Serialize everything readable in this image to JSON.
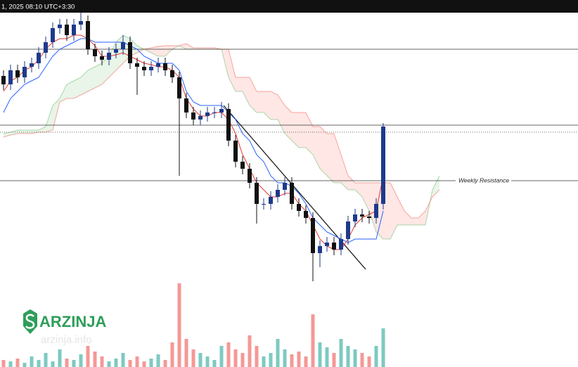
{
  "header": {
    "text": "1, 2025 08:10 UTC+3:30"
  },
  "logo": {
    "name": "ARZINJA",
    "url": "arzinja.info"
  },
  "chart_data": {
    "type": "candlestick",
    "categories": [
      null,
      null,
      null,
      null,
      null,
      null,
      null,
      null,
      null,
      null,
      null,
      null,
      null,
      null,
      null,
      null,
      null,
      null,
      null,
      null,
      null,
      null,
      null,
      null,
      null,
      null,
      null,
      null,
      null,
      null,
      null,
      null,
      null,
      null,
      null,
      null,
      null,
      null,
      null,
      null,
      null,
      null,
      null,
      null,
      null,
      null,
      null,
      null,
      null,
      null,
      null,
      null,
      null,
      null,
      null,
      null,
      null,
      null,
      null,
      null,
      null,
      null,
      null
    ],
    "ylim": [
      0,
      420
    ],
    "up_color": "#1e3a8a",
    "down_color": "#111111",
    "open": [
      312,
      300,
      320,
      310,
      325,
      330,
      345,
      360,
      380,
      385,
      370,
      385,
      390,
      350,
      340,
      335,
      345,
      350,
      360,
      330,
      325,
      320,
      325,
      330,
      320,
      310,
      280,
      260,
      250,
      255,
      260,
      260,
      265,
      220,
      190,
      180,
      160,
      130,
      130,
      140,
      150,
      160,
      130,
      120,
      110,
      60,
      70,
      75,
      65,
      80,
      105,
      115,
      112,
      110,
      130,
      null,
      null,
      null,
      null,
      null,
      null,
      null,
      null
    ],
    "high": [
      320,
      328,
      328,
      333,
      338,
      353,
      368,
      388,
      393,
      393,
      393,
      402,
      398,
      358,
      348,
      353,
      358,
      370,
      368,
      338,
      333,
      333,
      338,
      338,
      328,
      318,
      288,
      268,
      263,
      268,
      268,
      275,
      273,
      228,
      198,
      188,
      168,
      138,
      148,
      158,
      168,
      168,
      138,
      128,
      118,
      78,
      83,
      83,
      88,
      113,
      123,
      123,
      120,
      138,
      245,
      null,
      null,
      null,
      null,
      null,
      null,
      null,
      null
    ],
    "low": [
      292,
      292,
      302,
      302,
      317,
      322,
      337,
      352,
      372,
      362,
      362,
      377,
      342,
      332,
      327,
      327,
      337,
      342,
      322,
      285,
      312,
      312,
      317,
      312,
      302,
      170,
      252,
      242,
      242,
      247,
      252,
      252,
      212,
      182,
      172,
      152,
      102,
      122,
      122,
      132,
      142,
      122,
      112,
      102,
      20,
      40,
      62,
      57,
      57,
      72,
      97,
      104,
      102,
      102,
      122,
      null,
      null,
      null,
      null,
      null,
      null,
      null,
      null
    ],
    "close": [
      300,
      320,
      310,
      325,
      330,
      345,
      360,
      380,
      385,
      370,
      385,
      390,
      350,
      340,
      335,
      345,
      350,
      360,
      330,
      325,
      320,
      325,
      330,
      320,
      310,
      280,
      260,
      250,
      255,
      260,
      260,
      265,
      220,
      190,
      180,
      160,
      130,
      130,
      140,
      150,
      160,
      130,
      120,
      110,
      60,
      70,
      75,
      65,
      80,
      105,
      115,
      112,
      110,
      130,
      240,
      null,
      null,
      null,
      null,
      null,
      null,
      null,
      null
    ],
    "tenkan": {
      "color": "#e53935",
      "values": [
        290,
        305,
        310,
        320,
        325,
        335,
        350,
        360,
        365,
        365,
        370,
        370,
        365,
        355,
        340,
        340,
        342,
        345,
        340,
        335,
        330,
        328,
        325,
        325,
        320,
        310,
        280,
        265,
        255,
        255,
        260,
        260,
        250,
        230,
        200,
        180,
        160,
        150,
        140,
        140,
        145,
        145,
        130,
        120,
        100,
        80,
        70,
        65,
        65,
        80,
        100,
        110,
        115,
        120,
        170,
        null,
        null,
        null,
        null,
        null,
        null,
        null,
        null
      ]
    },
    "kijun": {
      "color": "#2962ff",
      "values": [
        260,
        280,
        290,
        300,
        305,
        310,
        325,
        340,
        350,
        355,
        360,
        365,
        365,
        360,
        360,
        360,
        360,
        360,
        355,
        350,
        340,
        335,
        330,
        330,
        330,
        320,
        290,
        275,
        270,
        270,
        270,
        270,
        260,
        250,
        230,
        220,
        200,
        190,
        170,
        160,
        160,
        155,
        145,
        130,
        110,
        100,
        90,
        85,
        80,
        75,
        80,
        80,
        80,
        80,
        120,
        null,
        null,
        null,
        null,
        null,
        null,
        null,
        null
      ]
    },
    "cloud": {
      "bull_color": "#4caf50",
      "bear_color": "#f44336",
      "span_a": [
        230,
        232,
        235,
        235,
        235,
        235,
        240,
        270,
        280,
        300,
        305,
        310,
        320,
        325,
        330,
        340,
        360,
        370,
        365,
        355,
        350,
        345,
        340,
        340,
        350,
        355,
        350,
        350,
        350,
        350,
        350,
        350,
        310,
        290,
        290,
        270,
        260,
        260,
        250,
        250,
        230,
        220,
        210,
        210,
        200,
        180,
        170,
        160,
        160,
        150,
        150,
        140,
        120,
        90,
        80,
        80,
        100,
        100,
        100,
        100,
        100,
        150,
        170
      ],
      "span_b": [
        225,
        228,
        230,
        230,
        230,
        232,
        232,
        235,
        275,
        280,
        280,
        285,
        290,
        295,
        300,
        310,
        320,
        330,
        340,
        345,
        350,
        352,
        354,
        355,
        355,
        355,
        358,
        352,
        352,
        352,
        352,
        350,
        350,
        310,
        310,
        310,
        290,
        290,
        290,
        285,
        270,
        260,
        260,
        260,
        240,
        240,
        230,
        230,
        200,
        170,
        160,
        160,
        160,
        160,
        160,
        160,
        140,
        120,
        110,
        110,
        120,
        140,
        150
      ]
    },
    "volume": {
      "vlim": [
        0,
        125
      ],
      "up_color": "#26a69a",
      "down_color": "#ef5350",
      "values": [
        10,
        8,
        12,
        6,
        15,
        10,
        20,
        8,
        25,
        12,
        10,
        18,
        30,
        22,
        15,
        8,
        12,
        20,
        10,
        15,
        8,
        12,
        18,
        10,
        35,
        119,
        40,
        25,
        20,
        15,
        10,
        30,
        35,
        25,
        20,
        45,
        30,
        15,
        20,
        40,
        25,
        18,
        22,
        15,
        75,
        35,
        28,
        20,
        40,
        30,
        25,
        20,
        15,
        30,
        55,
        null,
        null,
        null,
        null,
        null,
        null,
        null,
        null
      ]
    },
    "hlines": [
      {
        "value": 350,
        "style": "solid"
      },
      {
        "value": 242,
        "style": "solid"
      },
      {
        "value": 232,
        "style": "dotted"
      },
      {
        "value": 163,
        "style": "solid",
        "label": "Weekly Resistance"
      }
    ],
    "trendline": {
      "x": [
        31.3,
        51.5
      ],
      "y": [
        270,
        37
      ]
    }
  }
}
